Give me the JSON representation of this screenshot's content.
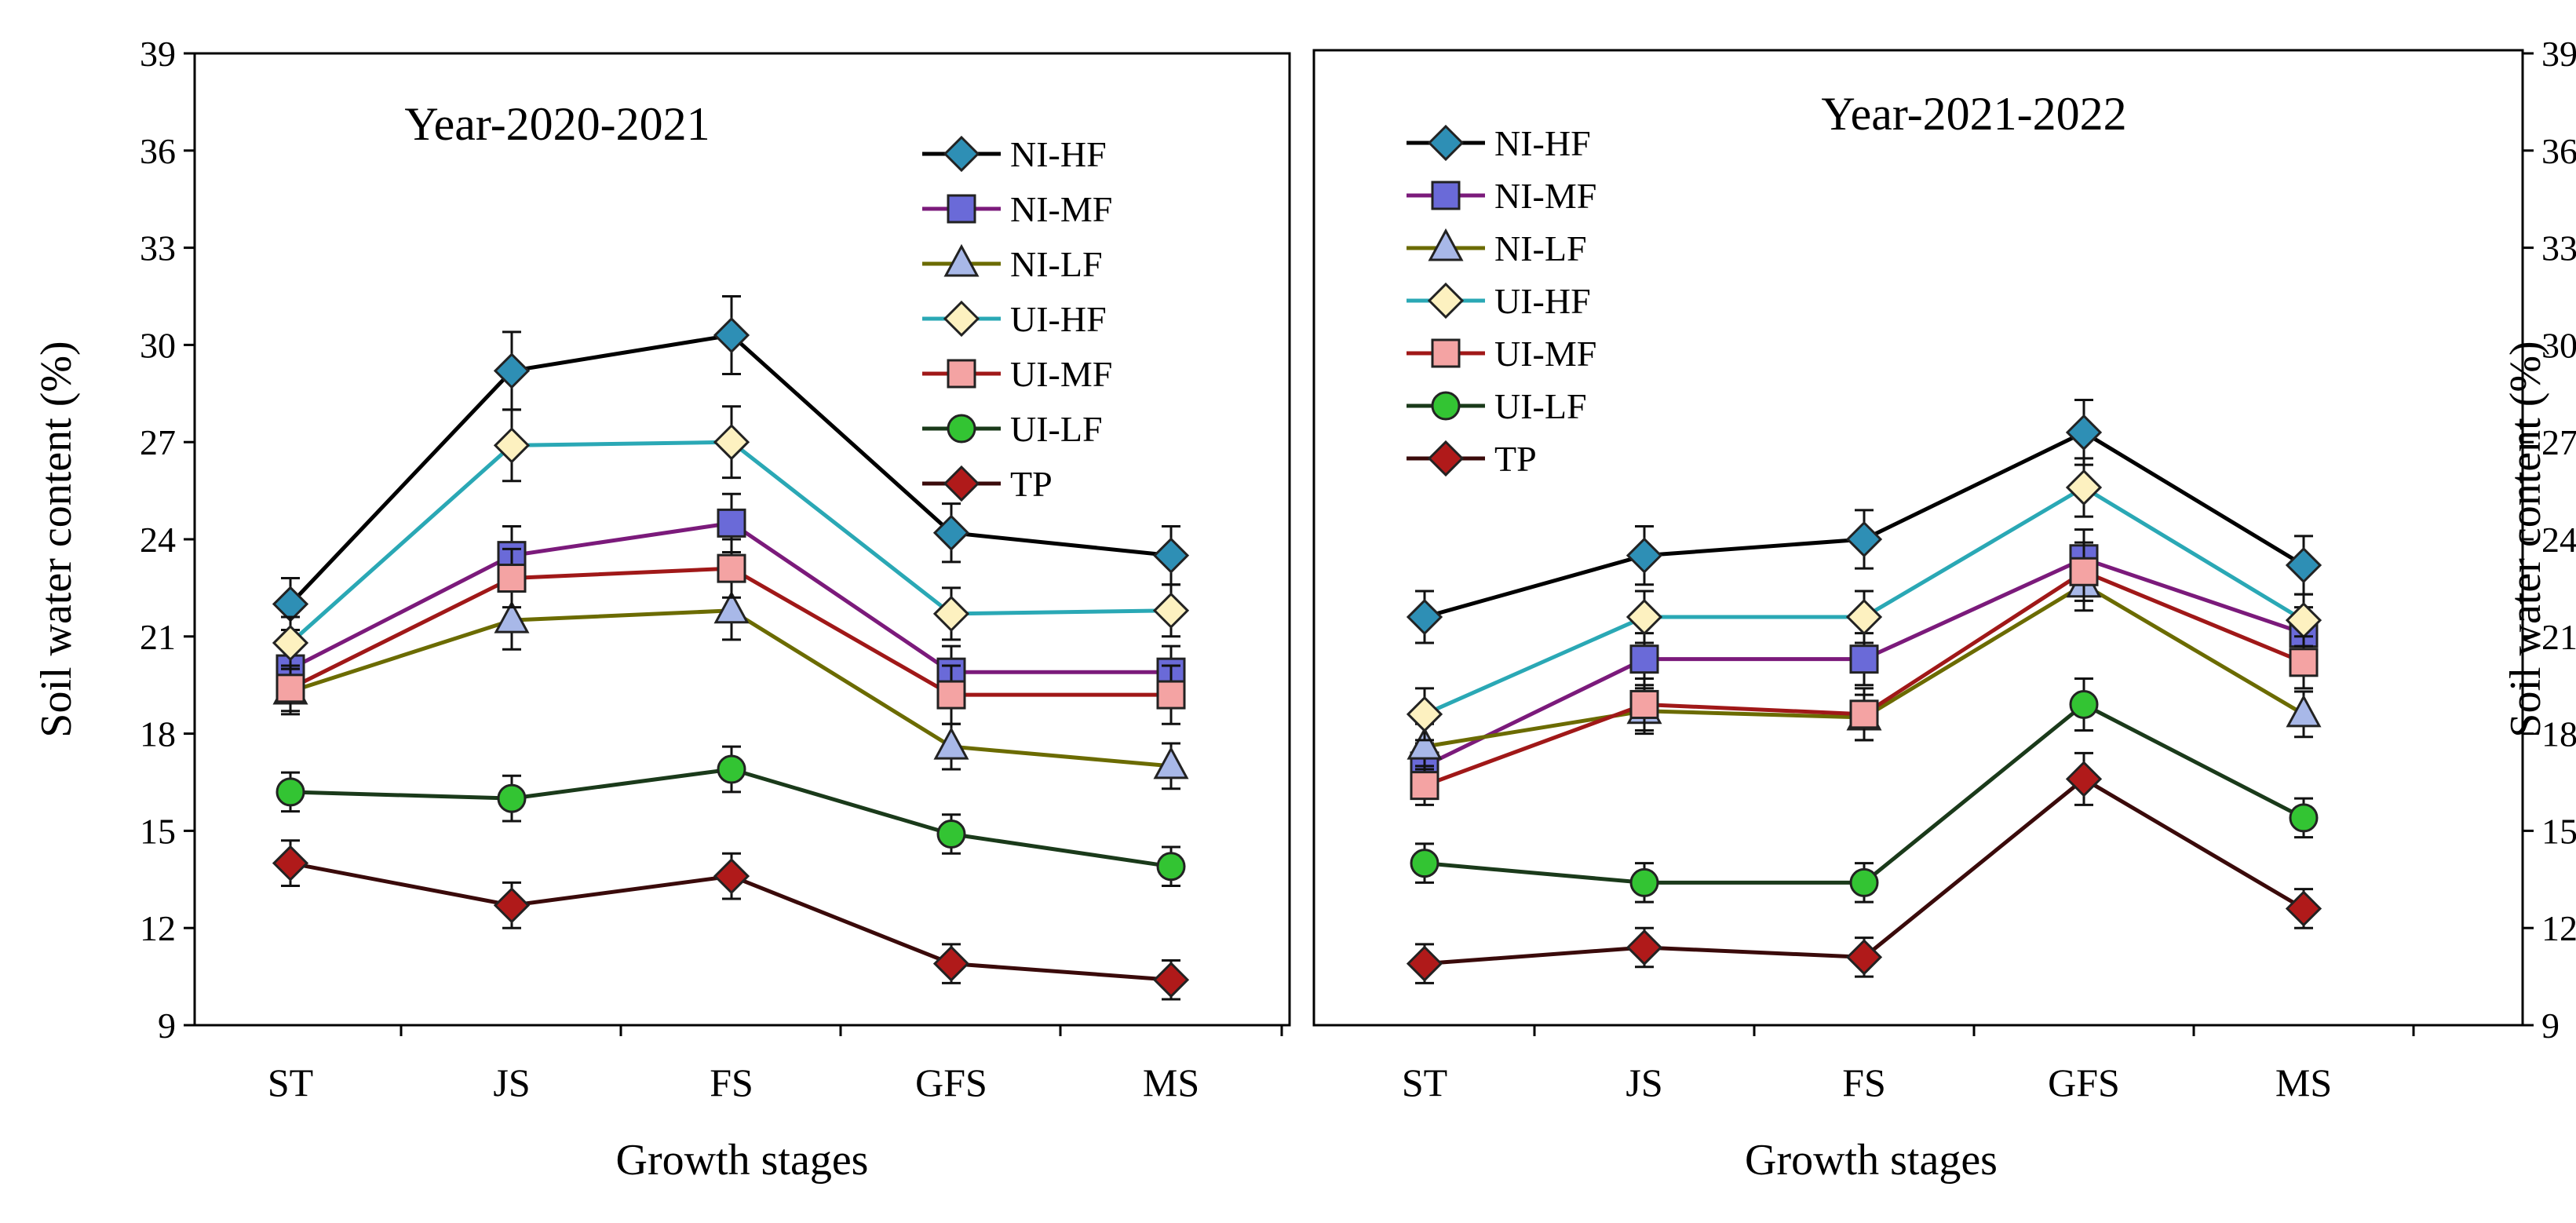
{
  "chart_data": [
    {
      "type": "line",
      "title": "Year-2020-2021",
      "xlabel": "Growth stages",
      "ylabel": "Soil water content (%)",
      "y_axis_side": "left",
      "ylim": [
        9,
        39
      ],
      "yticks": [
        9,
        12,
        15,
        18,
        21,
        24,
        27,
        30,
        33,
        36,
        39
      ],
      "categories": [
        "ST",
        "JS",
        "FS",
        "GFS",
        "MS"
      ],
      "legend_position": "top-right",
      "series": [
        {
          "name": "NI-HF",
          "marker": "diamond",
          "line_color": "#000000",
          "marker_color": "#2e8fb5",
          "values": [
            22.0,
            29.2,
            30.3,
            24.2,
            23.5
          ],
          "errors": [
            0.8,
            1.2,
            1.2,
            0.9,
            0.9
          ]
        },
        {
          "name": "NI-MF",
          "marker": "square",
          "line_color": "#7b1a7b",
          "marker_color": "#6a6ad8",
          "values": [
            20.0,
            23.5,
            24.5,
            19.9,
            19.9
          ],
          "errors": [
            0.7,
            0.9,
            0.9,
            0.8,
            0.8
          ]
        },
        {
          "name": "NI-LF",
          "marker": "triangle",
          "line_color": "#6b6b00",
          "marker_color": "#a8b8e8",
          "values": [
            19.3,
            21.5,
            21.8,
            17.6,
            17.0
          ],
          "errors": [
            0.7,
            0.9,
            0.9,
            0.7,
            0.7
          ]
        },
        {
          "name": "UI-HF",
          "marker": "diamond",
          "line_color": "#2aa8b5",
          "marker_color": "#fdf1c0",
          "values": [
            20.8,
            26.9,
            27.0,
            21.7,
            21.8
          ],
          "errors": [
            0.8,
            1.1,
            1.1,
            0.8,
            0.8
          ]
        },
        {
          "name": "UI-MF",
          "marker": "square",
          "line_color": "#a01818",
          "marker_color": "#f4a3a3",
          "values": [
            19.4,
            22.8,
            23.1,
            19.2,
            19.2
          ],
          "errors": [
            0.7,
            0.9,
            0.9,
            0.9,
            0.9
          ]
        },
        {
          "name": "UI-LF",
          "marker": "circle",
          "line_color": "#1a3a1a",
          "marker_color": "#33c433",
          "values": [
            16.2,
            16.0,
            16.9,
            14.9,
            13.9
          ],
          "errors": [
            0.6,
            0.7,
            0.7,
            0.6,
            0.6
          ]
        },
        {
          "name": "TP",
          "marker": "diamond",
          "line_color": "#3a0a0a",
          "marker_color": "#b01a1a",
          "values": [
            14.0,
            12.7,
            13.6,
            10.9,
            10.4
          ],
          "errors": [
            0.7,
            0.7,
            0.7,
            0.6,
            0.6
          ]
        }
      ]
    },
    {
      "type": "line",
      "title": "Year-2021-2022",
      "xlabel": "Growth stages",
      "ylabel": "Soil water content (%)",
      "y_axis_side": "right",
      "ylim": [
        9,
        39
      ],
      "yticks": [
        9,
        12,
        15,
        18,
        21,
        24,
        27,
        30,
        33,
        36,
        39
      ],
      "categories": [
        "ST",
        "JS",
        "FS",
        "GFS",
        "MS"
      ],
      "legend_position": "top-left",
      "series": [
        {
          "name": "NI-HF",
          "marker": "diamond",
          "line_color": "#000000",
          "marker_color": "#2e8fb5",
          "values": [
            21.6,
            23.5,
            24.0,
            27.3,
            23.2
          ],
          "errors": [
            0.8,
            0.9,
            0.9,
            1.0,
            0.9
          ]
        },
        {
          "name": "NI-MF",
          "marker": "square",
          "line_color": "#7b1a7b",
          "marker_color": "#6a6ad8",
          "values": [
            17.0,
            20.3,
            20.3,
            23.4,
            21.1
          ],
          "errors": [
            0.7,
            0.8,
            0.8,
            0.9,
            0.8
          ]
        },
        {
          "name": "NI-LF",
          "marker": "triangle",
          "line_color": "#6b6b00",
          "marker_color": "#a8b8e8",
          "values": [
            17.6,
            18.7,
            18.5,
            22.6,
            18.6
          ],
          "errors": [
            0.7,
            0.7,
            0.7,
            0.8,
            0.7
          ]
        },
        {
          "name": "UI-HF",
          "marker": "diamond",
          "line_color": "#2aa8b5",
          "marker_color": "#fdf1c0",
          "values": [
            18.6,
            21.6,
            21.6,
            25.6,
            21.5
          ],
          "errors": [
            0.8,
            0.8,
            0.8,
            0.9,
            0.8
          ]
        },
        {
          "name": "UI-MF",
          "marker": "square",
          "line_color": "#a01818",
          "marker_color": "#f4a3a3",
          "values": [
            16.4,
            18.9,
            18.6,
            23.0,
            20.2
          ],
          "errors": [
            0.6,
            0.8,
            0.8,
            0.9,
            0.8
          ]
        },
        {
          "name": "UI-LF",
          "marker": "circle",
          "line_color": "#1a3a1a",
          "marker_color": "#33c433",
          "values": [
            14.0,
            13.4,
            13.4,
            18.9,
            15.4
          ],
          "errors": [
            0.6,
            0.6,
            0.6,
            0.8,
            0.6
          ]
        },
        {
          "name": "TP",
          "marker": "diamond",
          "line_color": "#3a0a0a",
          "marker_color": "#b01a1a",
          "values": [
            10.9,
            11.4,
            11.1,
            16.6,
            12.6
          ],
          "errors": [
            0.6,
            0.6,
            0.6,
            0.8,
            0.6
          ]
        }
      ]
    }
  ]
}
